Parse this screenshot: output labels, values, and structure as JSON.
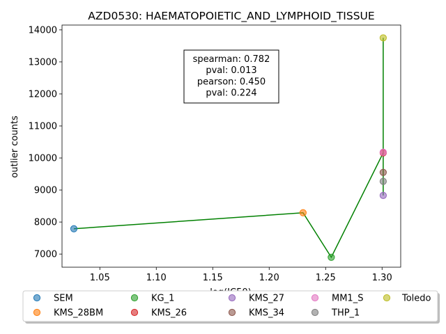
{
  "chart_data": {
    "type": "scatter",
    "title": "AZD0530: HAEMATOPOIETIC_AND_LYMPHOID_TISSUE",
    "xlabel": "log(IC50)",
    "ylabel": "outlier counts",
    "xlim": [
      1.0165,
      1.3165
    ],
    "ylim": [
      6590,
      14150
    ],
    "xticks": [
      1.05,
      1.1,
      1.15,
      1.2,
      1.25,
      1.3
    ],
    "xtick_labels": [
      "1.05",
      "1.10",
      "1.15",
      "1.20",
      "1.25",
      "1.30"
    ],
    "yticks": [
      7000,
      8000,
      9000,
      10000,
      11000,
      12000,
      13000,
      14000
    ],
    "ytick_labels": [
      "7000",
      "8000",
      "9000",
      "10000",
      "11000",
      "12000",
      "13000",
      "14000"
    ],
    "grid": false,
    "legend_position": "bottom",
    "annotation": [
      "spearman: 0.782",
      "pval: 0.013",
      "pearson: 0.450",
      "pval: 0.224"
    ],
    "series": [
      {
        "name": "SEM",
        "color": "#1f77b4",
        "x": 1.027,
        "y": 7790
      },
      {
        "name": "KMS_28BM",
        "color": "#ff7f0e",
        "x": 1.23,
        "y": 8290
      },
      {
        "name": "KG_1",
        "color": "#2ca02c",
        "x": 1.255,
        "y": 6900
      },
      {
        "name": "KMS_26",
        "color": "#d62728",
        "x": 1.301,
        "y": 10160
      },
      {
        "name": "KMS_27",
        "color": "#9467bd",
        "x": 1.301,
        "y": 8830
      },
      {
        "name": "KMS_34",
        "color": "#8c564b",
        "x": 1.301,
        "y": 9550
      },
      {
        "name": "MM1_S",
        "color": "#e377c2",
        "x": 1.301,
        "y": 10180
      },
      {
        "name": "THP_1",
        "color": "#7f7f7f",
        "x": 1.301,
        "y": 9270
      },
      {
        "name": "Toledo",
        "color": "#bcbd22",
        "x": 1.301,
        "y": 13750
      }
    ],
    "line": {
      "color": "#008000",
      "x": [
        1.027,
        1.23,
        1.255,
        1.301,
        1.301,
        1.301,
        1.301,
        1.301,
        1.301
      ],
      "y": [
        7790,
        8290,
        6900,
        10160,
        8830,
        9550,
        10180,
        9270,
        13750
      ]
    }
  }
}
